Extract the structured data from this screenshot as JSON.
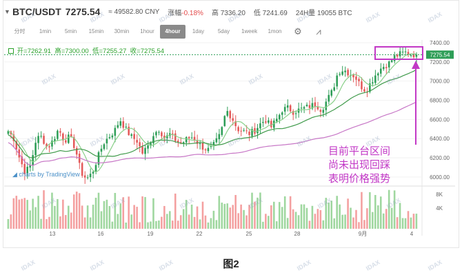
{
  "header": {
    "pair": "BTC/USDT",
    "last_price": "7275.54",
    "cny": "≈ 49582.80 CNY",
    "change_label": "涨幅",
    "change_value": "-0.18%",
    "high": "高 7336.20",
    "low": "低 7241.69",
    "volume": "24H量 19055 BTC"
  },
  "timeframes": [
    "分时",
    "1min",
    "5min",
    "15min",
    "30min",
    "1hour",
    "4hour",
    "1day",
    "5day",
    "1week",
    "1mon"
  ],
  "active_timeframe": "4hour",
  "tools": [
    "settings-icon",
    "indicators-icon"
  ],
  "legend": {
    "open": "开=7262.91",
    "high": "高=7300.00",
    "low": "低=7255.27",
    "close": "收=7275.54"
  },
  "tradingview_logo": "charts by TradingView",
  "annotation": [
    "目前平台区间",
    "尚未出现回踩",
    "表明价格强势"
  ],
  "caption": "图2",
  "watermark": "IDAX",
  "colors": {
    "up": "#2e9e57",
    "down": "#e45a5a",
    "vol_up": "#9fd79f",
    "vol_down": "#f4a0a0",
    "ma_short": "#8ad08a",
    "ma_mid": "#3f9a4a",
    "ma_long": "#c776c6",
    "annotation": "#c238c6"
  },
  "chart_data": {
    "type": "candlestick",
    "timeframe": "4hour",
    "price_axis": {
      "ticks": [
        6000,
        6200,
        6400,
        6600,
        6800,
        7000,
        7200,
        7400
      ],
      "ylim": [
        5920,
        7400
      ]
    },
    "volume_axis": {
      "ticks": [
        "4K",
        "8K"
      ]
    },
    "x_tick_labels": [
      "13",
      "16",
      "19",
      "22",
      "25",
      "28",
      "9月",
      "4"
    ],
    "current_price_label": "7275.54",
    "close_path": [
      6480,
      6400,
      6200,
      6050,
      6120,
      6400,
      6420,
      6300,
      6380,
      6500,
      6380,
      6420,
      6300,
      6050,
      5980,
      6040,
      6200,
      6350,
      6420,
      6480,
      6600,
      6500,
      6420,
      6380,
      6250,
      6320,
      6450,
      6500,
      6400,
      6450,
      6380,
      6350,
      6400,
      6420,
      6350,
      6300,
      6280,
      6350,
      6450,
      6700,
      6620,
      6500,
      6480,
      6450,
      6480,
      6550,
      6600,
      6520,
      6600,
      6700,
      6720,
      6680,
      6700,
      6720,
      6740,
      6760,
      6700,
      6800,
      6900,
      7100,
      7120,
      7080,
      7050,
      6950,
      6900,
      7000,
      7100,
      7150,
      7180,
      7250,
      7280,
      7300,
      7280,
      7275.54
    ]
  }
}
